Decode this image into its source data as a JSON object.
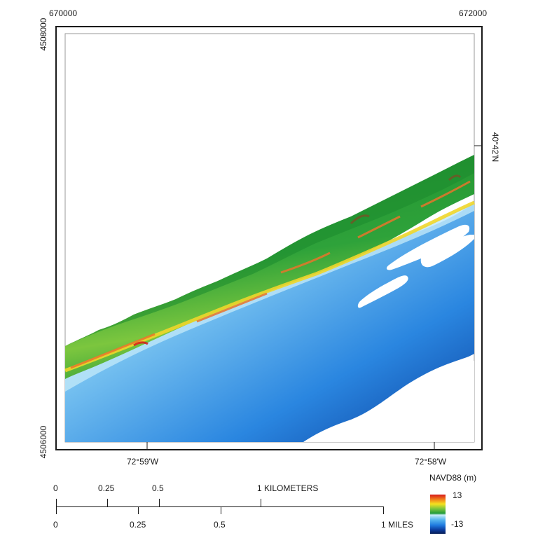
{
  "coords": {
    "easting_left": "670000",
    "easting_right": "672000",
    "northing_top": "4508000",
    "northing_bottom": "4506000",
    "lon_left": "72°59'W",
    "lon_right": "72°58'W",
    "lat_right": "40°42'N"
  },
  "legend": {
    "title": "NAVD88 (m)",
    "max": "13",
    "min": "-13",
    "colors": [
      "#d7191c",
      "#f6e11f",
      "#1f9a3a",
      "#59b7ef",
      "#061d56"
    ]
  },
  "scale_km": {
    "ticks": [
      "0",
      "0.25",
      "0.5",
      "1 KILOMETERS"
    ]
  },
  "scale_mi": {
    "ticks": [
      "0",
      "0.25",
      "0.5",
      "1 MILES"
    ]
  }
}
